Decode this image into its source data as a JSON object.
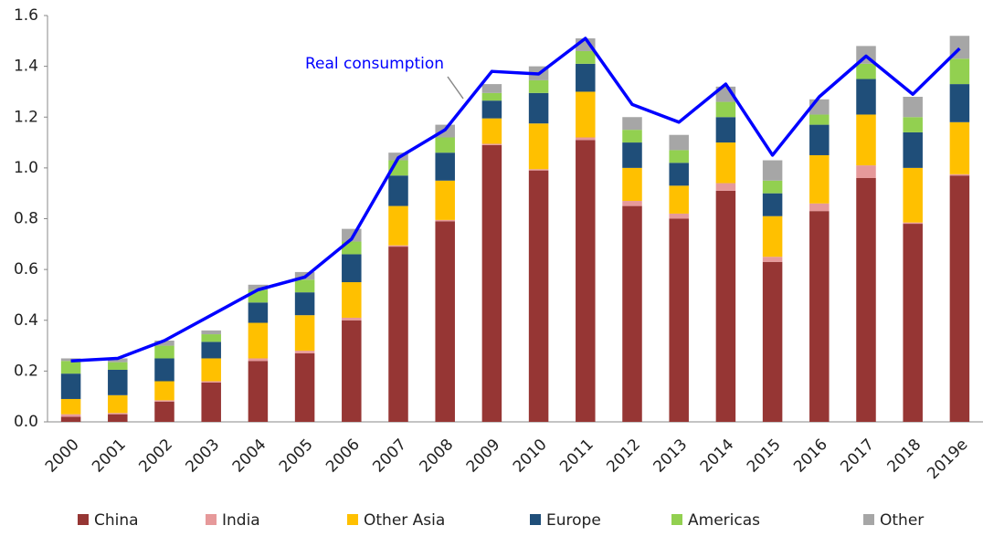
{
  "chart_data": {
    "type": "bar",
    "categories": [
      "2000",
      "2001",
      "2002",
      "2003",
      "2004",
      "2005",
      "2006",
      "2007",
      "2008",
      "2009",
      "2010",
      "2011",
      "2012",
      "2013",
      "2014",
      "2015",
      "2016",
      "2017",
      "2018",
      "2019e"
    ],
    "series": [
      {
        "name": "China",
        "color": "#963634",
        "values": [
          0.02,
          0.03,
          0.08,
          0.155,
          0.24,
          0.27,
          0.4,
          0.69,
          0.79,
          1.09,
          0.99,
          1.11,
          0.85,
          0.8,
          0.91,
          0.63,
          0.83,
          0.96,
          0.78,
          0.97
        ]
      },
      {
        "name": "India",
        "color": "#e6999a",
        "values": [
          0.01,
          0.005,
          0.005,
          0.005,
          0.01,
          0.01,
          0.01,
          0.005,
          0.005,
          0.005,
          0.005,
          0.01,
          0.02,
          0.02,
          0.03,
          0.02,
          0.03,
          0.05,
          0.005,
          0.005
        ]
      },
      {
        "name": "Other Asia",
        "color": "#ffc000",
        "values": [
          0.06,
          0.07,
          0.075,
          0.09,
          0.14,
          0.14,
          0.14,
          0.155,
          0.155,
          0.1,
          0.18,
          0.18,
          0.13,
          0.11,
          0.16,
          0.16,
          0.19,
          0.2,
          0.215,
          0.205
        ]
      },
      {
        "name": "Europe",
        "color": "#1f4e79",
        "values": [
          0.1,
          0.1,
          0.09,
          0.065,
          0.08,
          0.09,
          0.11,
          0.12,
          0.11,
          0.07,
          0.12,
          0.11,
          0.1,
          0.09,
          0.1,
          0.09,
          0.12,
          0.14,
          0.14,
          0.15
        ]
      },
      {
        "name": "Americas",
        "color": "#92d050",
        "values": [
          0.05,
          0.03,
          0.05,
          0.03,
          0.05,
          0.05,
          0.05,
          0.06,
          0.06,
          0.03,
          0.05,
          0.05,
          0.05,
          0.05,
          0.06,
          0.05,
          0.04,
          0.06,
          0.06,
          0.1
        ]
      },
      {
        "name": "Other",
        "color": "#a6a6a6",
        "values": [
          0.01,
          0.015,
          0.02,
          0.015,
          0.02,
          0.03,
          0.05,
          0.03,
          0.05,
          0.035,
          0.055,
          0.05,
          0.05,
          0.06,
          0.06,
          0.08,
          0.06,
          0.07,
          0.08,
          0.09
        ]
      }
    ],
    "line": {
      "name": "Real consumption",
      "color": "#0000ff",
      "values": [
        0.24,
        0.25,
        0.32,
        0.42,
        0.52,
        0.57,
        0.72,
        1.04,
        1.15,
        1.38,
        1.37,
        1.51,
        1.25,
        1.18,
        1.33,
        1.05,
        1.28,
        1.44,
        1.29,
        1.47
      ]
    },
    "ylim": [
      0,
      1.6
    ],
    "yticks": [
      {
        "value": 0,
        "label": "0.0"
      },
      0.2,
      0.4,
      0.6,
      0.8,
      {
        "value": 1,
        "label": "1.0"
      },
      1.2,
      1.4,
      1.6
    ],
    "stacked": true
  }
}
